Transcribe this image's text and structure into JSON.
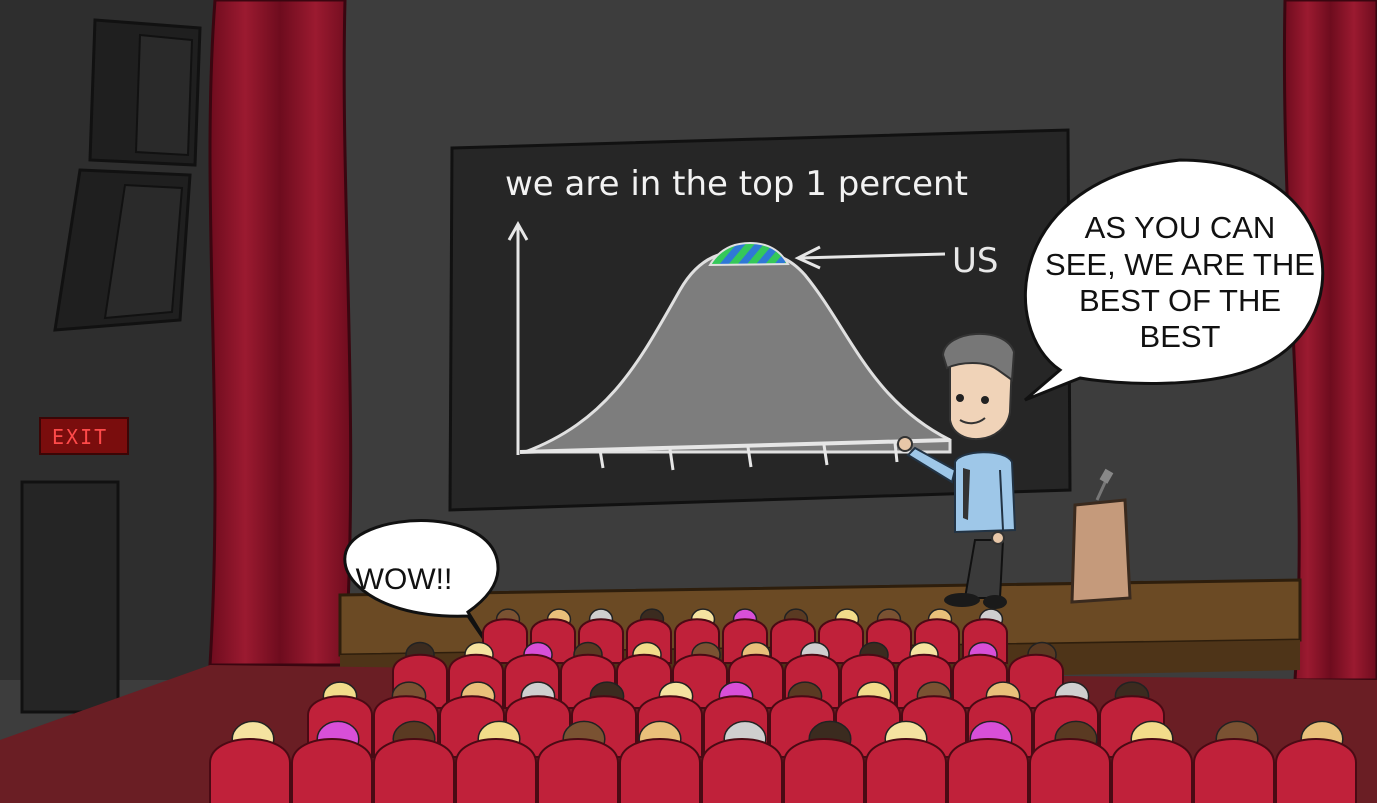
{
  "board": {
    "title": "we are in the top 1 percent",
    "annotation": "US"
  },
  "speech": {
    "presenter_lines": [
      "AS YOU CAN",
      "SEE, WE ARE THE",
      "BEST OF THE",
      "BEST"
    ],
    "audience": "WOW!!"
  },
  "exit_sign": "EXIT",
  "chart_data": {
    "type": "area",
    "title": "we are in the top 1 percent",
    "annotations": [
      "US"
    ],
    "grid": false,
    "shape": "bell-curve",
    "highlighted_region": "peak"
  },
  "colors": {
    "wall": "#3d3d3d",
    "curtain": "#8a1428",
    "board": "#262626",
    "curve_fill": "#7d7d7d",
    "highlight_green": "#35c85a",
    "highlight_blue": "#2f78d6",
    "stage": "#6b4a24",
    "seat": "#c0213a",
    "shirt": "#9ec7e8",
    "podium": "#c59a7b"
  }
}
